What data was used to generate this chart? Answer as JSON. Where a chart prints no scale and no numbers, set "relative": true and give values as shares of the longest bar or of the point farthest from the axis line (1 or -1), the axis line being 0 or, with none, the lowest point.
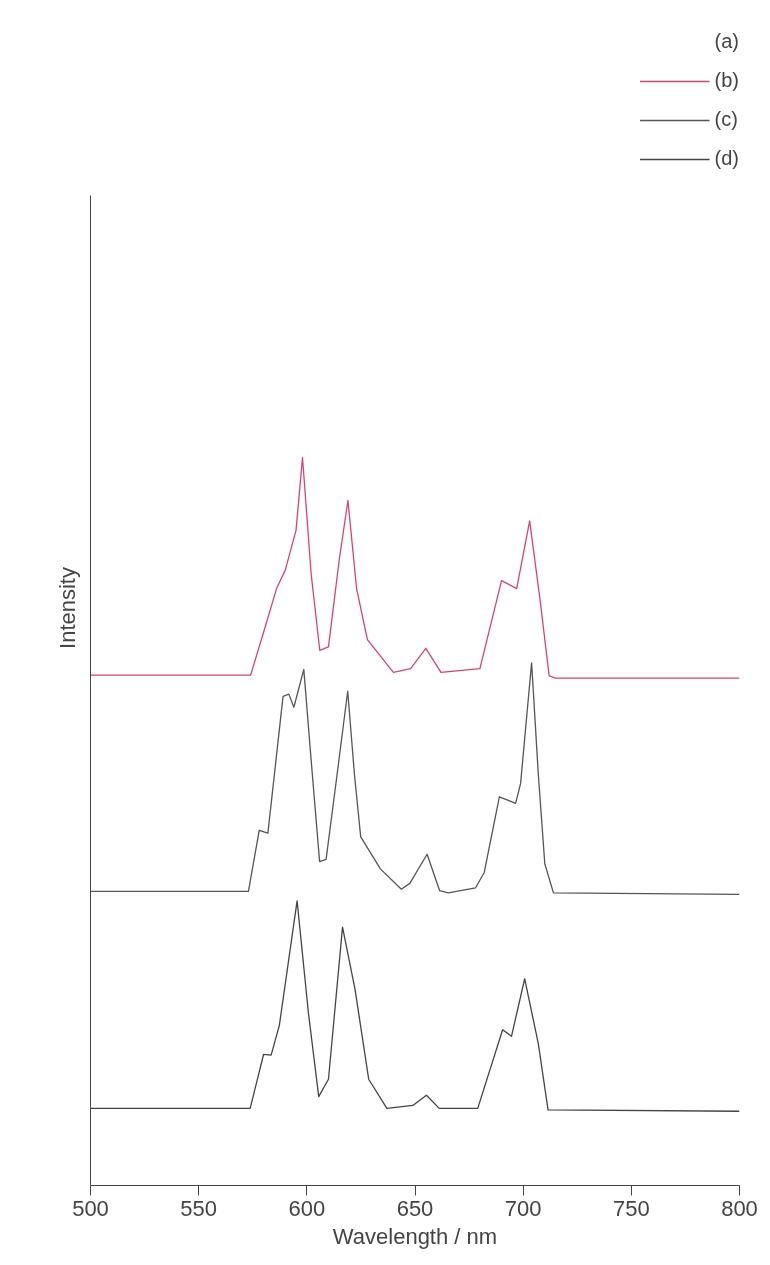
{
  "chart_data": {
    "type": "line",
    "xlabel": "Wavelength / nm",
    "ylabel": "Intensity",
    "relative": true,
    "xlim": [
      500,
      800
    ],
    "xticks": [
      500,
      550,
      600,
      650,
      700,
      750,
      800
    ],
    "annotations": [
      "(a)"
    ],
    "legend": "top right",
    "grid": false,
    "marker": "none",
    "line_style": "solid",
    "series": [
      {
        "name": "(b)",
        "color": "#d6456b",
        "x": [
          500,
          574,
          580,
          586,
          590,
          595,
          598,
          602,
          606,
          610,
          615,
          619,
          623,
          628,
          640,
          648,
          655,
          662,
          680,
          690,
          697,
          703,
          708,
          712,
          715,
          800
        ],
        "values": [
          0.701,
          0.701,
          0.76,
          0.82,
          0.845,
          0.9,
          1.0,
          0.84,
          0.735,
          0.74,
          0.86,
          0.941,
          0.82,
          0.75,
          0.705,
          0.71,
          0.738,
          0.705,
          0.71,
          0.831,
          0.82,
          0.913,
          0.8,
          0.7,
          0.697,
          0.697
        ]
      },
      {
        "name": "(c)",
        "color": "#555555",
        "x": [
          500,
          573,
          578,
          582,
          589,
          591.7,
          594,
          598.6,
          601.7,
          605.9,
          608.9,
          614,
          618.9,
          622,
          624.9,
          634,
          643.7,
          647.6,
          655.6,
          661.4,
          665.4,
          678,
          682,
          689,
          696.5,
          698.8,
          703.9,
          707,
          710,
          714,
          800
        ],
        "values": [
          0.404,
          0.404,
          0.488,
          0.484,
          0.672,
          0.675,
          0.657,
          0.709,
          0.595,
          0.445,
          0.448,
          0.565,
          0.679,
          0.565,
          0.479,
          0.435,
          0.407,
          0.415,
          0.455,
          0.405,
          0.402,
          0.409,
          0.43,
          0.534,
          0.525,
          0.552,
          0.718,
          0.565,
          0.442,
          0.402,
          0.4
        ]
      },
      {
        "name": "(d)",
        "color": "#444444",
        "x": [
          500,
          573.8,
          580,
          583.5,
          587.3,
          595.5,
          600.7,
          605.5,
          610,
          616.5,
          622.3,
          628.6,
          637,
          649,
          655.3,
          661.2,
          679,
          690.5,
          694.6,
          700.7,
          707,
          711.5,
          800
        ],
        "values": [
          0.106,
          0.106,
          0.18,
          0.179,
          0.22,
          0.391,
          0.238,
          0.122,
          0.146,
          0.355,
          0.269,
          0.146,
          0.106,
          0.11,
          0.124,
          0.106,
          0.106,
          0.214,
          0.205,
          0.284,
          0.195,
          0.104,
          0.102
        ]
      }
    ]
  }
}
